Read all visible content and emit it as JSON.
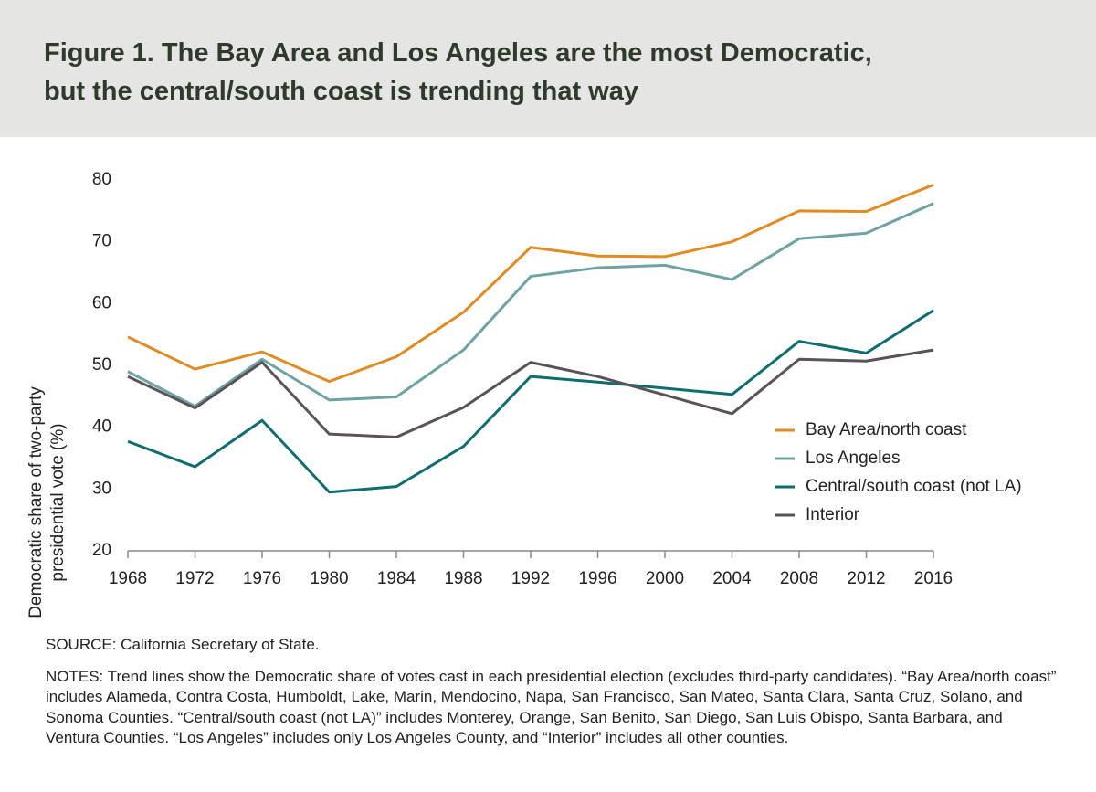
{
  "chart_data": {
    "type": "line",
    "title": [
      "Figure 1. The Bay Area and Los Angeles are the most Democratic,",
      "but the central/south coast is trending that way"
    ],
    "ylabel": [
      "Democratic share of two-party",
      "presidential vote (%)"
    ],
    "x": [
      1968,
      1972,
      1976,
      1980,
      1984,
      1988,
      1992,
      1996,
      2000,
      2004,
      2008,
      2012,
      2016
    ],
    "xlim": [
      1968,
      2016
    ],
    "xticks": [
      1968,
      1972,
      1976,
      1980,
      1984,
      1988,
      1992,
      1996,
      2000,
      2004,
      2008,
      2012,
      2016
    ],
    "ylim": [
      20,
      80
    ],
    "yticks": [
      20,
      30,
      40,
      50,
      60,
      70,
      80
    ],
    "grid": false,
    "legend": "right",
    "series": [
      {
        "name": "Bay Area/north coast",
        "color": "#e08b24",
        "values": [
          54.6,
          49.4,
          52.2,
          47.4,
          51.4,
          58.6,
          69.1,
          67.7,
          67.6,
          70.0,
          75.0,
          74.9,
          79.2
        ]
      },
      {
        "name": "Los Angeles",
        "color": "#6fa3a3",
        "values": [
          49.0,
          43.4,
          51.0,
          44.4,
          44.9,
          52.5,
          64.4,
          65.8,
          66.2,
          63.9,
          70.5,
          71.4,
          76.2
        ]
      },
      {
        "name": "Central/south coast (not LA)",
        "color": "#0f6d6e",
        "values": [
          37.7,
          33.6,
          41.1,
          29.5,
          30.4,
          36.9,
          48.2,
          47.3,
          46.3,
          45.3,
          53.9,
          52.0,
          58.9
        ]
      },
      {
        "name": "Interior",
        "color": "#5a5257",
        "values": [
          48.2,
          43.1,
          50.5,
          38.9,
          38.4,
          43.2,
          50.5,
          48.2,
          45.2,
          42.2,
          51.0,
          50.7,
          52.5
        ]
      }
    ],
    "source": "SOURCE: California Secretary of State.",
    "notes": "NOTES: Trend lines show the Democratic share of votes cast in each presidential election (excludes third-party candidates). “Bay Area/north coast” includes Alameda, Contra Costa, Humboldt, Lake, Marin, Mendocino, Napa, San Francisco, San Mateo, Santa Clara, Santa Cruz, Solano, and Sonoma Counties. “Central/south coast (not LA)” includes Monterey, Orange, San Benito, San Diego, San Luis Obispo, Santa Barbara, and Ventura Counties. “Los Angeles” includes only Los Angeles County, and “Interior” includes all other counties."
  }
}
